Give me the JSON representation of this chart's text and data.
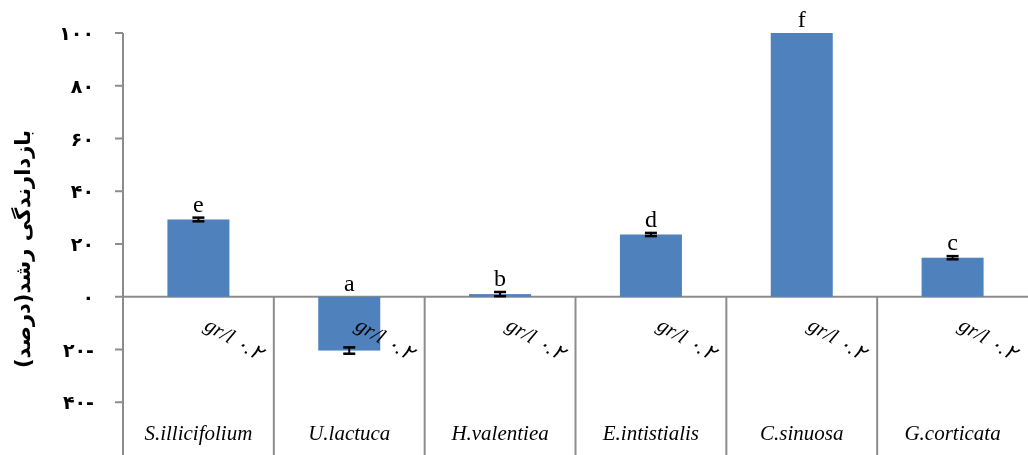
{
  "chart_data": {
    "type": "bar",
    "ylabel": "بازدارندگی رشد(درصد)",
    "categories": [
      "S.illicifolium",
      "U.lactuca",
      "H.valentiea",
      "E.intistialis",
      "C.sinuosa",
      "G.corticata"
    ],
    "values": [
      29.3,
      -20.4,
      1,
      23.6,
      100,
      14.8
    ],
    "errors": [
      0.7,
      1.2,
      0.8,
      0.6,
      null,
      0.6
    ],
    "color": "#4f81bd",
    "ylim": [
      -60,
      100
    ],
    "yticks": [
      {
        "value": -40,
        "label": "۴۰-"
      },
      {
        "value": -20,
        "label": "۲۰-"
      },
      {
        "value": 0,
        "label": "۰"
      },
      {
        "value": 20,
        "label": "۲۰"
      },
      {
        "value": 40,
        "label": "۴۰"
      },
      {
        "value": 60,
        "label": "۶۰"
      },
      {
        "value": 80,
        "label": "۸۰"
      },
      {
        "value": 100,
        "label": "۱۰۰"
      }
    ],
    "annotations": [
      {
        "text": "e",
        "x": "S.illicifolium",
        "y": 29.3
      },
      {
        "text": "a",
        "x": "U.lactuca",
        "y": 0
      },
      {
        "text": "b",
        "x": "H.valentiea",
        "y": 1
      },
      {
        "text": "d",
        "x": "E.intistialis",
        "y": 23.6
      },
      {
        "text": "f",
        "x": "C.sinuosa",
        "y": 100
      },
      {
        "text": "c",
        "x": "G.corticata",
        "y": 14.8
      },
      "gr/l ۰.۲",
      "gr/l ۰.۲",
      "gr/l ۰.۲",
      "gr/l ۰.۲",
      "gr/l ۰.۲",
      "gr/l ۰.۲"
    ]
  }
}
